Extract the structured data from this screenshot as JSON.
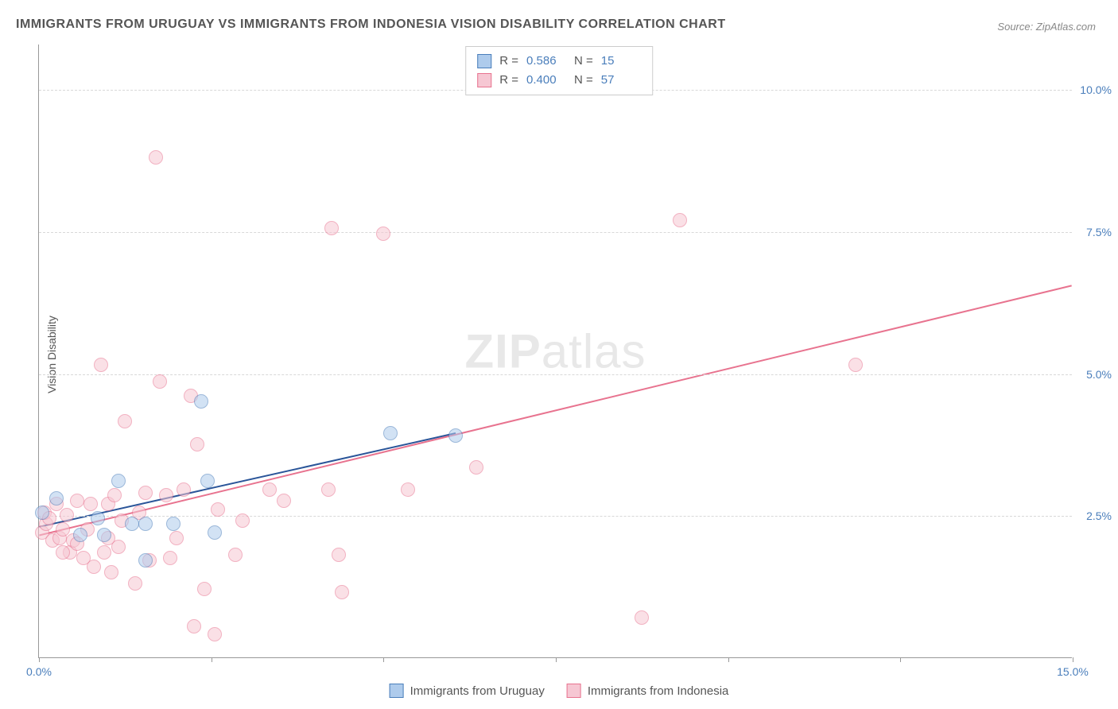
{
  "title": "IMMIGRANTS FROM URUGUAY VS IMMIGRANTS FROM INDONESIA VISION DISABILITY CORRELATION CHART",
  "source_label": "Source:",
  "source_name": "ZipAtlas.com",
  "y_axis_title": "Vision Disability",
  "watermark": {
    "bold": "ZIP",
    "light": "atlas"
  },
  "chart": {
    "type": "scatter",
    "xlim": [
      0,
      15
    ],
    "ylim": [
      0,
      10.8
    ],
    "x_ticks": [
      0,
      2.5,
      5,
      7.5,
      10,
      12.5,
      15
    ],
    "x_tick_labels": {
      "0": "0.0%",
      "15": "15.0%"
    },
    "y_gridlines": [
      2.5,
      5.0,
      7.5,
      10.0
    ],
    "y_tick_labels": {
      "2.5": "2.5%",
      "5.0": "5.0%",
      "7.5": "7.5%",
      "10.0": "10.0%"
    },
    "background_color": "#ffffff",
    "grid_color": "#d8d8d8",
    "axis_color": "#999999",
    "point_radius": 9,
    "point_opacity": 0.55,
    "series": [
      {
        "name": "Immigrants from Uruguay",
        "fill": "#aecbec",
        "stroke": "#4a7ebb",
        "trend": {
          "x1": 0,
          "y1": 2.3,
          "x2": 6.05,
          "y2": 3.95,
          "color": "#2a5599",
          "width": 2
        },
        "points": [
          [
            0.05,
            2.55
          ],
          [
            0.25,
            2.8
          ],
          [
            0.6,
            2.15
          ],
          [
            0.85,
            2.45
          ],
          [
            0.95,
            2.15
          ],
          [
            1.15,
            3.1
          ],
          [
            1.35,
            2.35
          ],
          [
            1.55,
            1.7
          ],
          [
            1.55,
            2.35
          ],
          [
            1.95,
            2.35
          ],
          [
            2.35,
            4.5
          ],
          [
            2.45,
            3.1
          ],
          [
            2.55,
            2.2
          ],
          [
            5.1,
            3.95
          ],
          [
            6.05,
            3.9
          ]
        ]
      },
      {
        "name": "Immigrants from Indonesia",
        "fill": "#f6c7d3",
        "stroke": "#e8738f",
        "trend": {
          "x1": 0,
          "y1": 2.15,
          "x2": 15,
          "y2": 6.55,
          "color": "#e8738f",
          "width": 2
        },
        "points": [
          [
            0.05,
            2.2
          ],
          [
            0.1,
            2.35
          ],
          [
            0.08,
            2.55
          ],
          [
            0.15,
            2.45
          ],
          [
            0.2,
            2.05
          ],
          [
            0.25,
            2.7
          ],
          [
            0.3,
            2.1
          ],
          [
            0.35,
            2.25
          ],
          [
            0.4,
            2.5
          ],
          [
            0.45,
            1.85
          ],
          [
            0.5,
            2.05
          ],
          [
            0.55,
            2.75
          ],
          [
            0.55,
            2.0
          ],
          [
            0.65,
            1.75
          ],
          [
            0.7,
            2.25
          ],
          [
            0.75,
            2.7
          ],
          [
            0.8,
            1.6
          ],
          [
            0.9,
            5.15
          ],
          [
            0.95,
            1.85
          ],
          [
            1.0,
            2.7
          ],
          [
            1.05,
            1.5
          ],
          [
            1.1,
            2.85
          ],
          [
            1.15,
            1.95
          ],
          [
            1.2,
            2.4
          ],
          [
            1.25,
            4.15
          ],
          [
            1.4,
            1.3
          ],
          [
            1.45,
            2.55
          ],
          [
            1.55,
            2.9
          ],
          [
            1.6,
            1.7
          ],
          [
            1.7,
            8.8
          ],
          [
            1.75,
            4.85
          ],
          [
            1.85,
            2.85
          ],
          [
            1.9,
            1.75
          ],
          [
            2.0,
            2.1
          ],
          [
            2.1,
            2.95
          ],
          [
            2.2,
            4.6
          ],
          [
            2.25,
            0.55
          ],
          [
            2.3,
            3.75
          ],
          [
            2.4,
            1.2
          ],
          [
            2.55,
            0.4
          ],
          [
            2.6,
            2.6
          ],
          [
            2.85,
            1.8
          ],
          [
            2.95,
            2.4
          ],
          [
            3.35,
            2.95
          ],
          [
            3.55,
            2.75
          ],
          [
            4.2,
            2.95
          ],
          [
            4.25,
            7.55
          ],
          [
            4.35,
            1.8
          ],
          [
            4.4,
            1.15
          ],
          [
            5.0,
            7.45
          ],
          [
            5.35,
            2.95
          ],
          [
            6.35,
            3.35
          ],
          [
            8.75,
            0.7
          ],
          [
            9.3,
            7.7
          ],
          [
            11.85,
            5.15
          ],
          [
            1.0,
            2.1
          ],
          [
            0.35,
            1.85
          ]
        ]
      }
    ],
    "legend_top": [
      {
        "r_label": "R =",
        "r_value": "0.586",
        "n_label": "N =",
        "n_value": "15",
        "swatch_fill": "#aecbec",
        "swatch_stroke": "#4a7ebb"
      },
      {
        "r_label": "R =",
        "r_value": "0.400",
        "n_label": "N =",
        "n_value": "57",
        "swatch_fill": "#f6c7d3",
        "swatch_stroke": "#e8738f"
      }
    ],
    "legend_bottom": [
      {
        "label": "Immigrants from Uruguay",
        "swatch_fill": "#aecbec",
        "swatch_stroke": "#4a7ebb"
      },
      {
        "label": "Immigrants from Indonesia",
        "swatch_fill": "#f6c7d3",
        "swatch_stroke": "#e8738f"
      }
    ]
  }
}
